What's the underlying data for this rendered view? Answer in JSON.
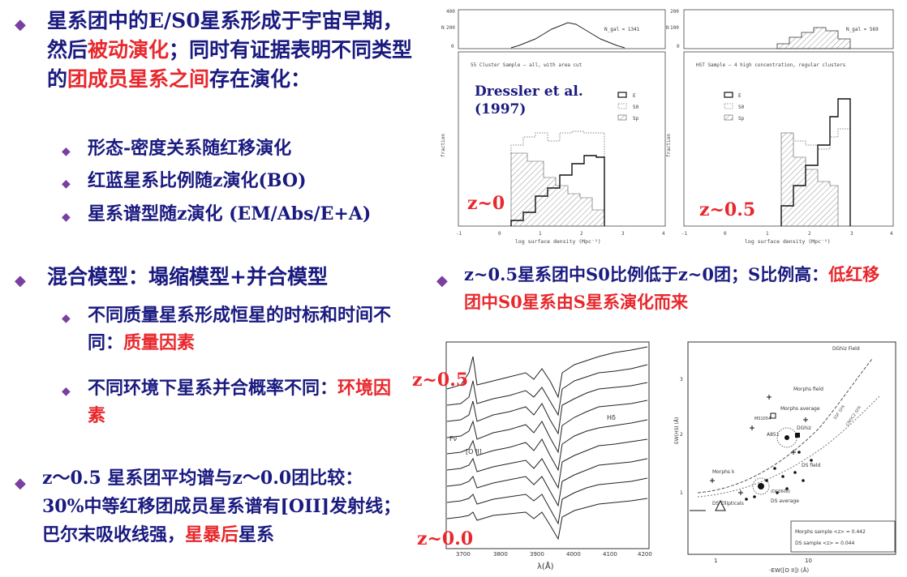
{
  "left": {
    "b1": {
      "seg1": "星系团中的E/S0星系形成于宇宙早期，然后",
      "seg2": "被动演化",
      "seg3": "；同时有证据表明不同类型的",
      "seg4": "团成员星系之间",
      "seg5": "存在演化："
    },
    "b1_sub": [
      "形态-密度关系随红移演化",
      "红蓝星系比例随z演化(BO)",
      "星系谱型随z演化 (EM/Abs/E+A)"
    ],
    "b2": {
      "text": "混合模型：塌缩模型+并合模型"
    },
    "b2_sub1": {
      "text": "不同质量星系形成恒星的时标和时间不同：",
      "red": "质量因素"
    },
    "b2_sub2": {
      "text": "不同环境下星系并合概率不同：",
      "red": "环境因素"
    },
    "b3": {
      "text": "z～0.5 星系团平均谱与z～0.0团比较：30%中等红移团成员星系谱有[OII]发射线；巴尔末吸收线强，",
      "red1": "星暴后",
      "tail": "星系"
    }
  },
  "right_bullet": {
    "text": "z~0.5星系团中S0比例低于z~0团；S比例高：",
    "red": "低红移团中S0星系由S星系演化而来"
  },
  "fig1": {
    "overlay_z": "z~0",
    "credit": "Dressler et al. (1997)",
    "nall": "N_gal = 1341",
    "caption": "55 Cluster Sample – all, with area cut",
    "xlabel": "log surface density (Mpc⁻²)",
    "ylabel": "fraction",
    "hist_ylabel": "N",
    "legend": [
      "E",
      "S0",
      "Sp"
    ],
    "xticks": [
      "-1",
      "0",
      "1",
      "2",
      "3",
      "4"
    ],
    "yticks": [
      "0",
      "200",
      "400"
    ]
  },
  "fig2": {
    "overlay_z": "z~0.5",
    "nall": "N_gal = 569",
    "caption": "HST Sample – 4 high concentration, regular clusters",
    "xlabel": "log surface density (Mpc⁻²)",
    "ylabel": "fraction",
    "hist_ylabel": "N",
    "legend": [
      "E",
      "S0",
      "Sp"
    ],
    "xticks": [
      "-1",
      "0",
      "1",
      "2",
      "3",
      "4"
    ],
    "yticks": [
      "0",
      "100",
      "200"
    ]
  },
  "fig3": {
    "z_top": "z~0.5",
    "z_bottom": "z~0.0",
    "ylabel": "Fν",
    "xlabel": "λ(Å)",
    "xticks": [
      "3700",
      "3800",
      "3900",
      "4000",
      "4100",
      "4200"
    ],
    "labels": [
      "[O II]",
      "Hδ"
    ]
  },
  "fig4": {
    "ylabel": "EW(Hδ) (Å)",
    "xlabel": "-EW([O II]) (Å)",
    "xticks": [
      "1",
      "10"
    ],
    "yticks": [
      "1",
      "2",
      "3"
    ],
    "labels": [
      "DGhiz Field",
      "Morphs field",
      "Morphs average",
      "MS1054",
      "A851",
      "DGhiz",
      "DS field",
      "Morphs k",
      "DS Ellipticals",
      "DS average",
      "(DC0608)",
      "SSF SFR",
      "CNOC2 SFR"
    ],
    "legend": [
      "Morphs sample <z> = 0.442",
      "DS sample <z> = 0.044"
    ]
  }
}
